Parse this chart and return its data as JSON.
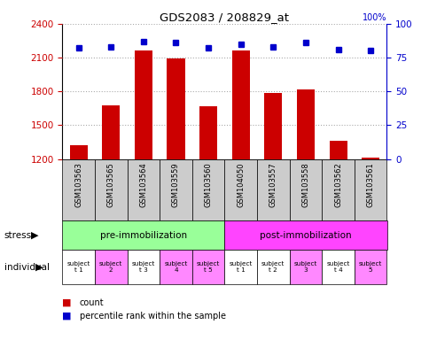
{
  "title": "GDS2083 / 208829_at",
  "samples": [
    "GSM103563",
    "GSM103565",
    "GSM103564",
    "GSM103559",
    "GSM103560",
    "GSM104050",
    "GSM103557",
    "GSM103558",
    "GSM103562",
    "GSM103561"
  ],
  "counts": [
    1320,
    1680,
    2160,
    2090,
    1670,
    2160,
    1790,
    1820,
    1360,
    1210
  ],
  "percentile_ranks": [
    82,
    83,
    87,
    86,
    82,
    85,
    83,
    86,
    81,
    80
  ],
  "ylim_left": [
    1200,
    2400
  ],
  "ylim_right": [
    0,
    100
  ],
  "yticks_left": [
    1200,
    1500,
    1800,
    2100,
    2400
  ],
  "yticks_right": [
    0,
    25,
    50,
    75,
    100
  ],
  "bar_color": "#cc0000",
  "dot_color": "#0000cc",
  "stress_groups": [
    {
      "label": "pre-immobilization",
      "start": 0,
      "end": 5,
      "color": "#99ff99"
    },
    {
      "label": "post-immobilization",
      "start": 5,
      "end": 10,
      "color": "#ff44ff"
    }
  ],
  "individuals": [
    "subject\nt 1",
    "subject\n2",
    "subject\nt 3",
    "subject\n4",
    "subject\nt 5",
    "subject\nt 1",
    "subject\nt 2",
    "subject\n3",
    "subject\nt 4",
    "subject\n5"
  ],
  "individual_colors": [
    "#ffffff",
    "#ff88ff",
    "#ffffff",
    "#ff88ff",
    "#ff88ff",
    "#ffffff",
    "#ffffff",
    "#ff88ff",
    "#ffffff",
    "#ff88ff"
  ],
  "grid_color": "#aaaaaa",
  "sample_bg": "#cccccc",
  "left_label_color": "#cc0000",
  "right_label_color": "#0000cc",
  "right_top_label": "100%"
}
